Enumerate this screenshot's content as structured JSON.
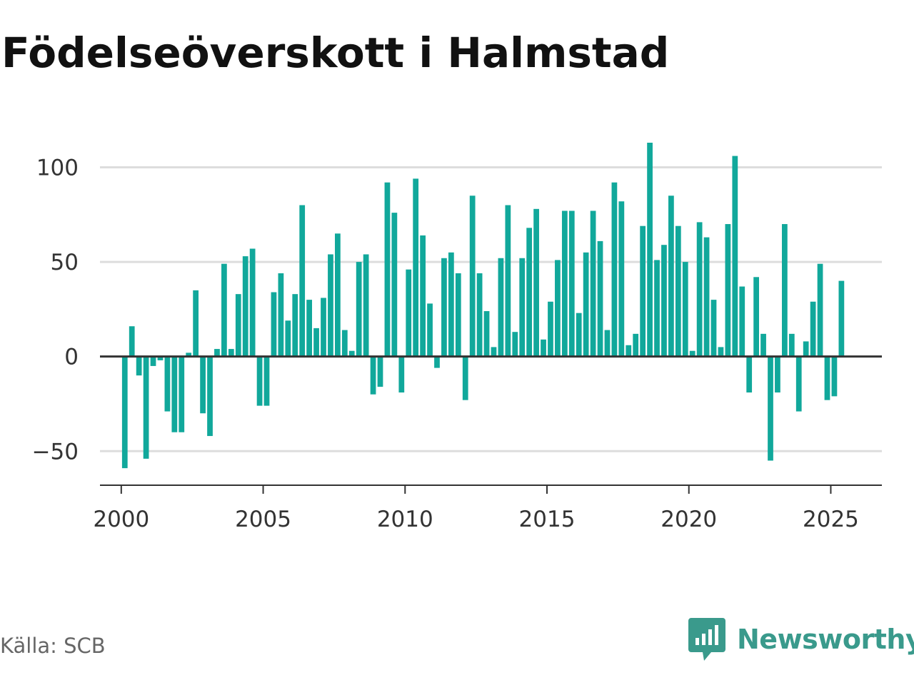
{
  "title": "Födelseöverskott i Halmstad",
  "source": "Källa: SCB",
  "brand": {
    "name": "Newsworthy",
    "icon": "newsworthy-logo-icon",
    "color": "#3a9a8c"
  },
  "colors": {
    "bar": "#11a89b",
    "grid": "#dddddd",
    "zero_line": "#333333",
    "axis": "#333333"
  },
  "chart_data": {
    "type": "bar",
    "title": "Födelseöverskott i Halmstad",
    "xlabel": "",
    "ylabel": "",
    "frequency": "quarterly",
    "start_period": "2000 Q1",
    "values": [
      -59,
      16,
      -10,
      -54,
      -5,
      -2,
      -29,
      -40,
      -40,
      2,
      35,
      -30,
      -42,
      4,
      49,
      4,
      33,
      53,
      57,
      -26,
      -26,
      34,
      44,
      19,
      33,
      80,
      30,
      15,
      31,
      54,
      65,
      14,
      3,
      50,
      54,
      -20,
      -16,
      92,
      76,
      -19,
      46,
      94,
      64,
      28,
      -6,
      52,
      55,
      44,
      -23,
      85,
      44,
      24,
      5,
      52,
      80,
      13,
      52,
      68,
      78,
      9,
      29,
      51,
      77,
      77,
      23,
      55,
      77,
      61,
      14,
      92,
      82,
      6,
      12,
      69,
      113,
      51,
      59,
      85,
      69,
      50,
      3,
      71,
      63,
      30,
      5,
      70,
      106,
      37,
      -19,
      42,
      12,
      -55,
      -19,
      70,
      12,
      -29,
      8,
      29,
      49,
      -23,
      -21,
      40
    ],
    "x_ticks": [
      "2000",
      "2005",
      "2010",
      "2015",
      "2020",
      "2025"
    ],
    "y_ticks": [
      {
        "value": 100,
        "label": "100"
      },
      {
        "value": 50,
        "label": "50"
      },
      {
        "value": 0,
        "label": "0"
      },
      {
        "value": -50,
        "label": "−50"
      }
    ],
    "xlim": [
      1999.25,
      2026.8
    ],
    "ylim": [
      -68,
      113
    ],
    "grid": true,
    "legend": "none"
  }
}
